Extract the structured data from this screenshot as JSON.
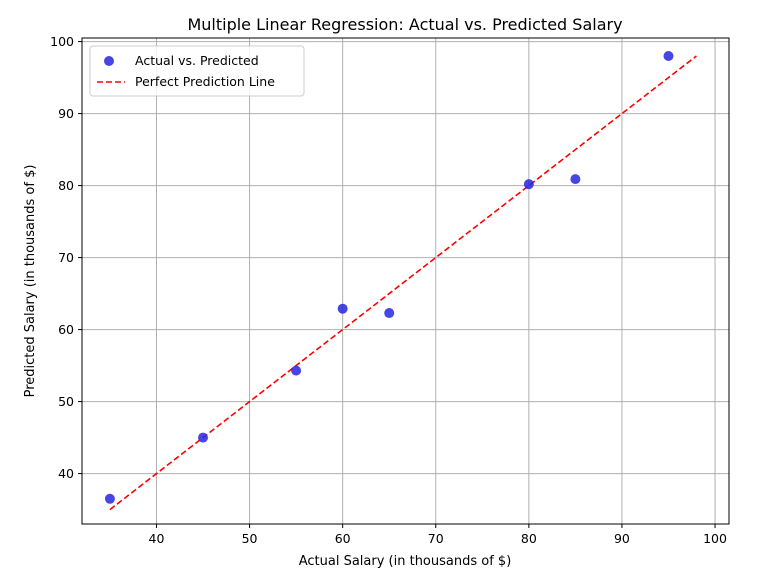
{
  "chart_data": {
    "type": "scatter",
    "title": "Multiple Linear Regression: Actual vs. Predicted Salary",
    "xlabel": "Actual Salary (in thousands of $)",
    "ylabel": "Predicted Salary (in thousands of $)",
    "xlim": [
      32,
      101.5
    ],
    "ylim": [
      33,
      100.5
    ],
    "xticks": [
      40,
      50,
      60,
      70,
      80,
      90,
      100
    ],
    "yticks": [
      40,
      50,
      60,
      70,
      80,
      90,
      100
    ],
    "grid": true,
    "legend_position": "top-left",
    "series": [
      {
        "name": "Actual vs. Predicted",
        "type": "scatter",
        "color": "#2626e0",
        "points": [
          {
            "x": 35,
            "y": 36.5
          },
          {
            "x": 45,
            "y": 45
          },
          {
            "x": 55,
            "y": 54.3
          },
          {
            "x": 60,
            "y": 62.9
          },
          {
            "x": 65,
            "y": 62.3
          },
          {
            "x": 80,
            "y": 80.2
          },
          {
            "x": 85,
            "y": 80.9
          },
          {
            "x": 95,
            "y": 98
          }
        ]
      },
      {
        "name": "Perfect Prediction Line",
        "type": "line",
        "style": "dashed",
        "color": "#ff0000",
        "points": [
          {
            "x": 35,
            "y": 35
          },
          {
            "x": 98,
            "y": 98
          }
        ]
      }
    ]
  }
}
